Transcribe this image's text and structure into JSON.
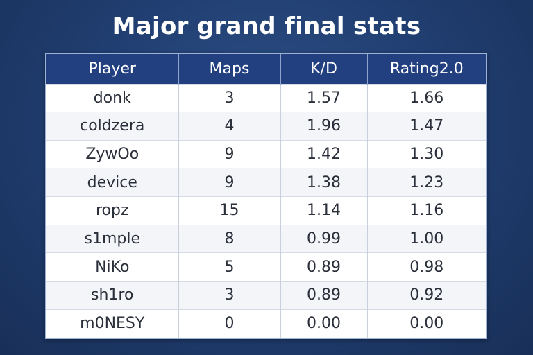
{
  "title": "Major grand final stats",
  "table": {
    "headers": [
      "Player",
      "Maps",
      "K/D",
      "Rating2.0"
    ],
    "rows": [
      [
        "donk",
        "3",
        "1.57",
        "1.66"
      ],
      [
        "coldzera",
        "4",
        "1.96",
        "1.47"
      ],
      [
        "ZywOo",
        "9",
        "1.42",
        "1.30"
      ],
      [
        "device",
        "9",
        "1.38",
        "1.23"
      ],
      [
        "ropz",
        "15",
        "1.14",
        "1.16"
      ],
      [
        "s1mple",
        "8",
        "0.99",
        "1.00"
      ],
      [
        "NiKo",
        "5",
        "0.89",
        "0.98"
      ],
      [
        "sh1ro",
        "3",
        "0.89",
        "0.92"
      ],
      [
        "m0NESY",
        "0",
        "0.00",
        "0.00"
      ]
    ]
  },
  "colors": {
    "background": "#213f72",
    "header": "#223f80",
    "text": "#2a2f3a"
  }
}
